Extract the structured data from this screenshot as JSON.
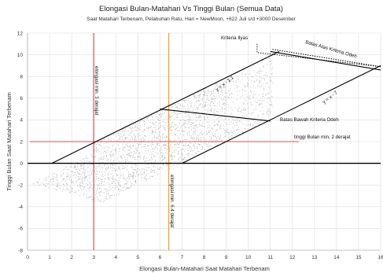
{
  "chart_data": {
    "type": "scatter",
    "title": "Elongasi Bulan-Matahari Vs Tinggi Bulan (Semua Data)",
    "subtitle": "Saat Matahari Terbenam, Pelabuhan Ratu, Hari = NewMoon, +622 Juli s/d +3000 Desember",
    "xlabel": "Elongasi Bulan-Matahari Saat Matahari Terbenam",
    "ylabel": "Tinggi Bulan Saat Matahari Terbenam",
    "xlim": [
      0,
      16
    ],
    "ylim": [
      -8,
      12
    ],
    "xticks": [
      0,
      1,
      2,
      3,
      4,
      5,
      6,
      7,
      8,
      9,
      10,
      11,
      12,
      13,
      14,
      15,
      16
    ],
    "yticks": [
      -8,
      -6,
      -4,
      -2,
      0,
      2,
      4,
      6,
      8,
      10,
      12
    ],
    "grid": true,
    "scatter_color": "#9a9a9a",
    "lines": [
      {
        "name": "y = x - 1.1",
        "label": "y = x - 1.1",
        "x": [
          1.1,
          11.4
        ],
        "y": [
          0,
          10.3
        ],
        "color": "#000000"
      },
      {
        "name": "y = x - 7",
        "label": "y = x - 7",
        "x": [
          7,
          16
        ],
        "y": [
          0,
          9
        ],
        "color": "#000000"
      },
      {
        "name": "Batas Bawah Kriteria Odeh",
        "label": "Batas Bawah Kriteria Odeh",
        "x": [
          6,
          11
        ],
        "y": [
          5,
          3.9
        ],
        "color": "#000000"
      },
      {
        "name": "Batas Atas Kriteria Odeh",
        "label": "Batas Atas Kriteria Odeh",
        "x": [
          11,
          16
        ],
        "y": [
          10.3,
          8.6
        ],
        "color": "#000000"
      }
    ],
    "kriteria_ilyas": {
      "label": "Kriteria Ilyas",
      "x": [
        10.4,
        10.4,
        16
      ],
      "y": [
        11,
        10.2,
        8.9
      ],
      "color": "#000000"
    },
    "reference_lines": [
      {
        "orientation": "vertical",
        "value": 3,
        "label": "elongasi min. 3 derajat",
        "color": "#d9534f"
      },
      {
        "orientation": "vertical",
        "value": 6.4,
        "label": "elongasi min. 6.4 derajat",
        "color": "#f0a030"
      },
      {
        "orientation": "horizontal",
        "value": 2,
        "label": "tinggi Bulan min. 2 derajat",
        "color": "#d9534f"
      }
    ]
  }
}
